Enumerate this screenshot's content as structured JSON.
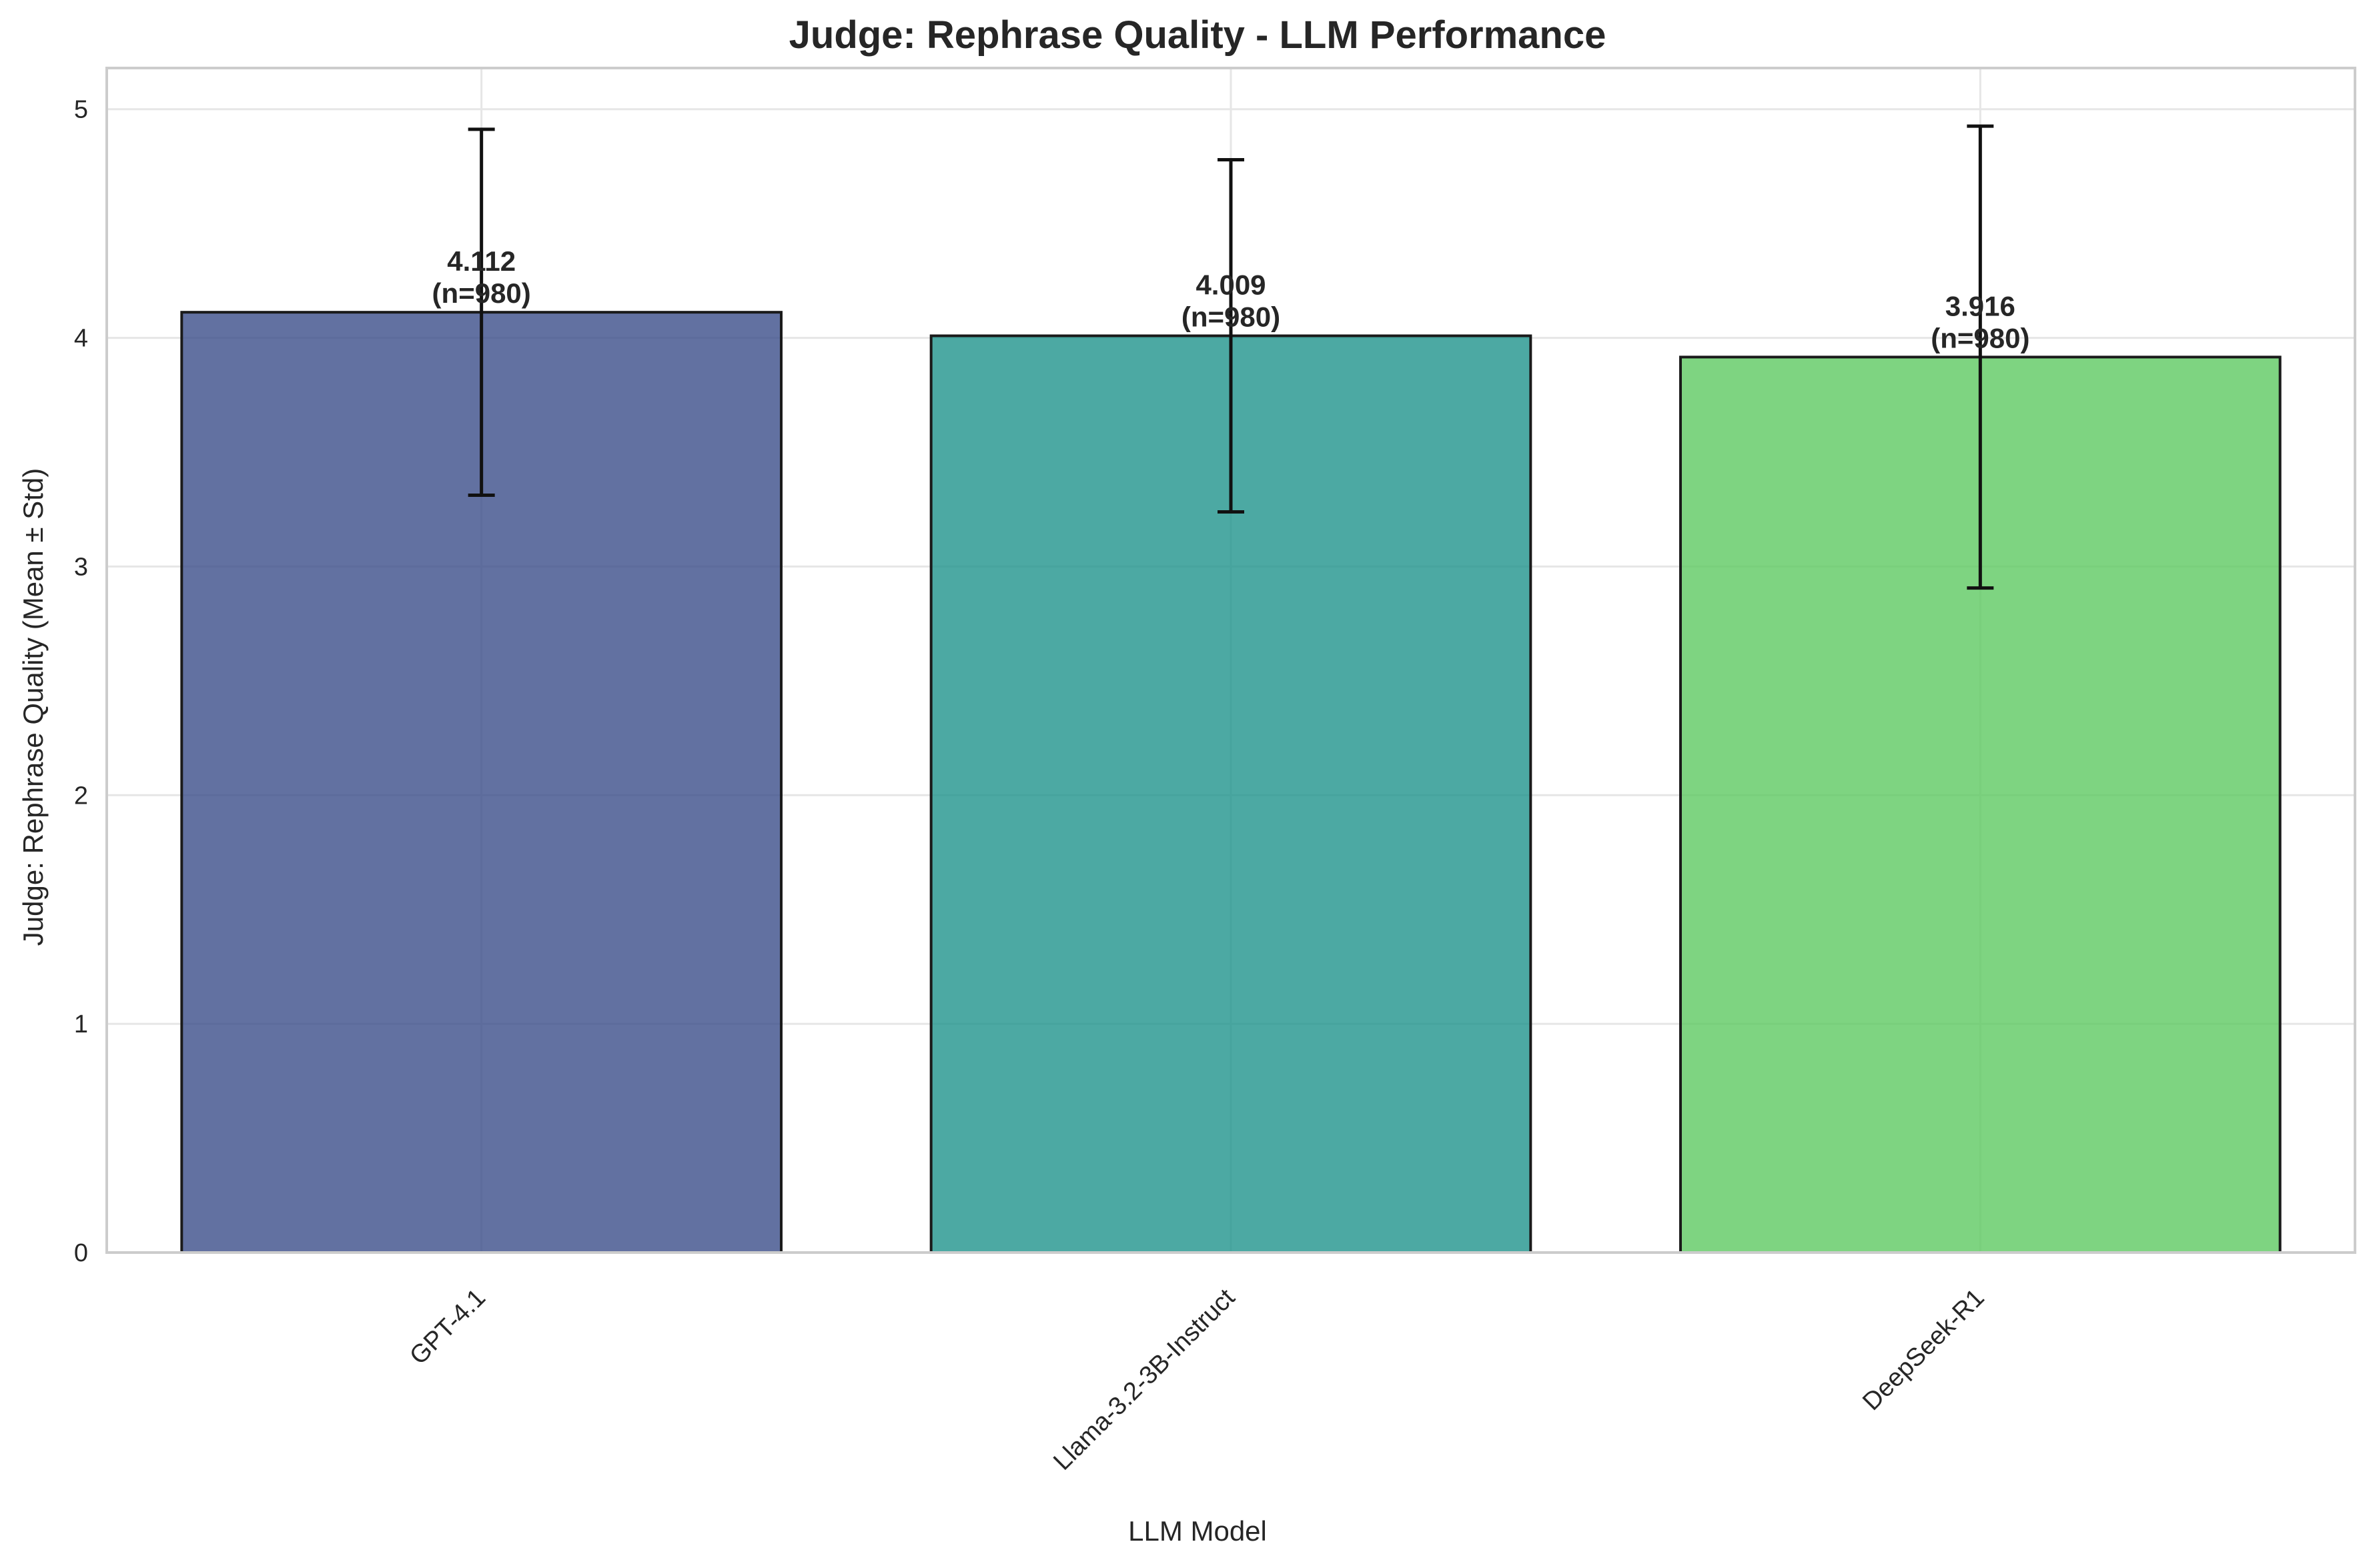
{
  "chart_data": {
    "type": "bar",
    "title": "Judge: Rephrase Quality - LLM Performance",
    "xlabel": "LLM Model",
    "ylabel": "Judge: Rephrase Quality (Mean ± Std)",
    "categories": [
      "GPT-4.1",
      "Llama-3.2-3B-Instruct",
      "DeepSeek-R1"
    ],
    "values": [
      4.112,
      4.009,
      3.916
    ],
    "errors": [
      0.8,
      0.77,
      1.01
    ],
    "n_labels": [
      "(n=980)",
      "(n=980)",
      "(n=980)"
    ],
    "value_labels": [
      "4.112",
      "4.009",
      "3.916"
    ],
    "colors": [
      "#3b4d8a",
      "#1f948c",
      "#5ec962"
    ],
    "ylim": [
      0,
      5.18
    ],
    "yticks": [
      0,
      1,
      2,
      3,
      4,
      5
    ],
    "grid": true,
    "x_tick_rotation": "45deg"
  }
}
